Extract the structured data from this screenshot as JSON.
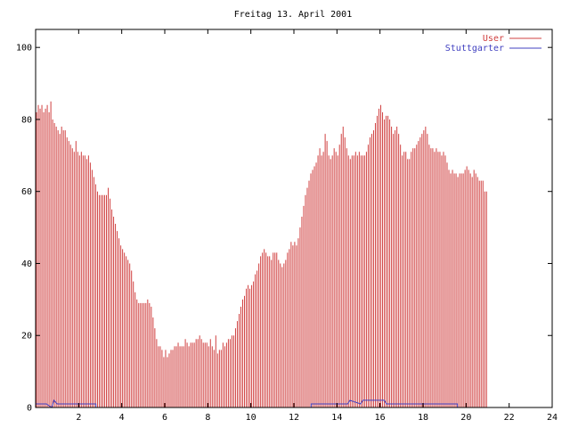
{
  "chart_data": {
    "type": "bar",
    "title": "Freitag 13. April 2001",
    "xlabel": "",
    "ylabel": "",
    "xlim": [
      0,
      24
    ],
    "ylim": [
      0,
      105
    ],
    "xticks": [
      2,
      4,
      6,
      8,
      10,
      12,
      14,
      16,
      18,
      20,
      22,
      24
    ],
    "yticks": [
      0,
      20,
      40,
      60,
      80,
      100
    ],
    "grid": false,
    "legend": "top-right",
    "step_hours": 0.0833,
    "series": [
      {
        "name": "User",
        "style": "impulses",
        "color": "#d04040",
        "values": [
          82,
          84,
          83,
          84,
          82,
          83,
          84,
          82,
          85,
          80,
          79,
          78,
          77,
          76,
          78,
          77,
          77,
          75,
          74,
          73,
          72,
          71,
          74,
          71,
          70,
          71,
          70,
          70,
          69,
          70,
          68,
          66,
          64,
          62,
          60,
          59,
          59,
          59,
          59,
          59,
          61,
          58,
          55,
          53,
          51,
          49,
          47,
          45,
          44,
          43,
          42,
          41,
          40,
          38,
          35,
          32,
          30,
          29,
          29,
          29,
          29,
          29,
          30,
          29,
          28,
          25,
          22,
          19,
          17,
          17,
          16,
          14,
          16,
          14,
          15,
          16,
          16,
          17,
          17,
          18,
          17,
          17,
          17,
          19,
          18,
          17,
          18,
          18,
          18,
          19,
          19,
          20,
          19,
          18,
          18,
          18,
          17,
          19,
          17,
          16,
          20,
          15,
          16,
          16,
          18,
          17,
          18,
          19,
          19,
          20,
          20,
          22,
          24,
          26,
          28,
          30,
          31,
          33,
          34,
          33,
          34,
          35,
          37,
          38,
          40,
          42,
          43,
          44,
          43,
          42,
          42,
          41,
          43,
          43,
          43,
          41,
          40,
          39,
          40,
          41,
          43,
          44,
          46,
          45,
          46,
          45,
          47,
          50,
          53,
          56,
          59,
          61,
          63,
          65,
          66,
          67,
          68,
          70,
          72,
          70,
          71,
          76,
          74,
          70,
          69,
          70,
          72,
          71,
          70,
          73,
          76,
          78,
          75,
          72,
          70,
          69,
          70,
          70,
          71,
          70,
          71,
          70,
          70,
          70,
          71,
          73,
          75,
          76,
          77,
          79,
          81,
          83,
          84,
          82,
          80,
          81,
          81,
          80,
          78,
          76,
          77,
          78,
          76,
          73,
          70,
          71,
          71,
          69,
          69,
          71,
          72,
          72,
          73,
          74,
          75,
          76,
          77,
          78,
          76,
          73,
          72,
          72,
          71,
          72,
          71,
          71,
          70,
          71,
          70,
          68,
          66,
          65,
          66,
          65,
          65,
          64,
          65,
          65,
          65,
          66,
          67,
          66,
          65,
          64,
          66,
          65,
          64,
          63,
          63,
          63,
          60,
          60
        ]
      },
      {
        "name": "Stuttgarter",
        "style": "line",
        "color": "#4040c0",
        "x": [
          0,
          0.5,
          0.75,
          0.85,
          1.0,
          2.8,
          2.8,
          12.8,
          12.8,
          14.5,
          14.6,
          15.1,
          15.2,
          16.2,
          16.3,
          19.6,
          19.6,
          24
        ],
        "values": [
          1,
          1,
          0,
          2,
          1,
          1,
          0,
          0,
          1,
          1,
          2,
          1,
          2,
          2,
          1,
          1,
          0,
          0
        ]
      }
    ]
  }
}
